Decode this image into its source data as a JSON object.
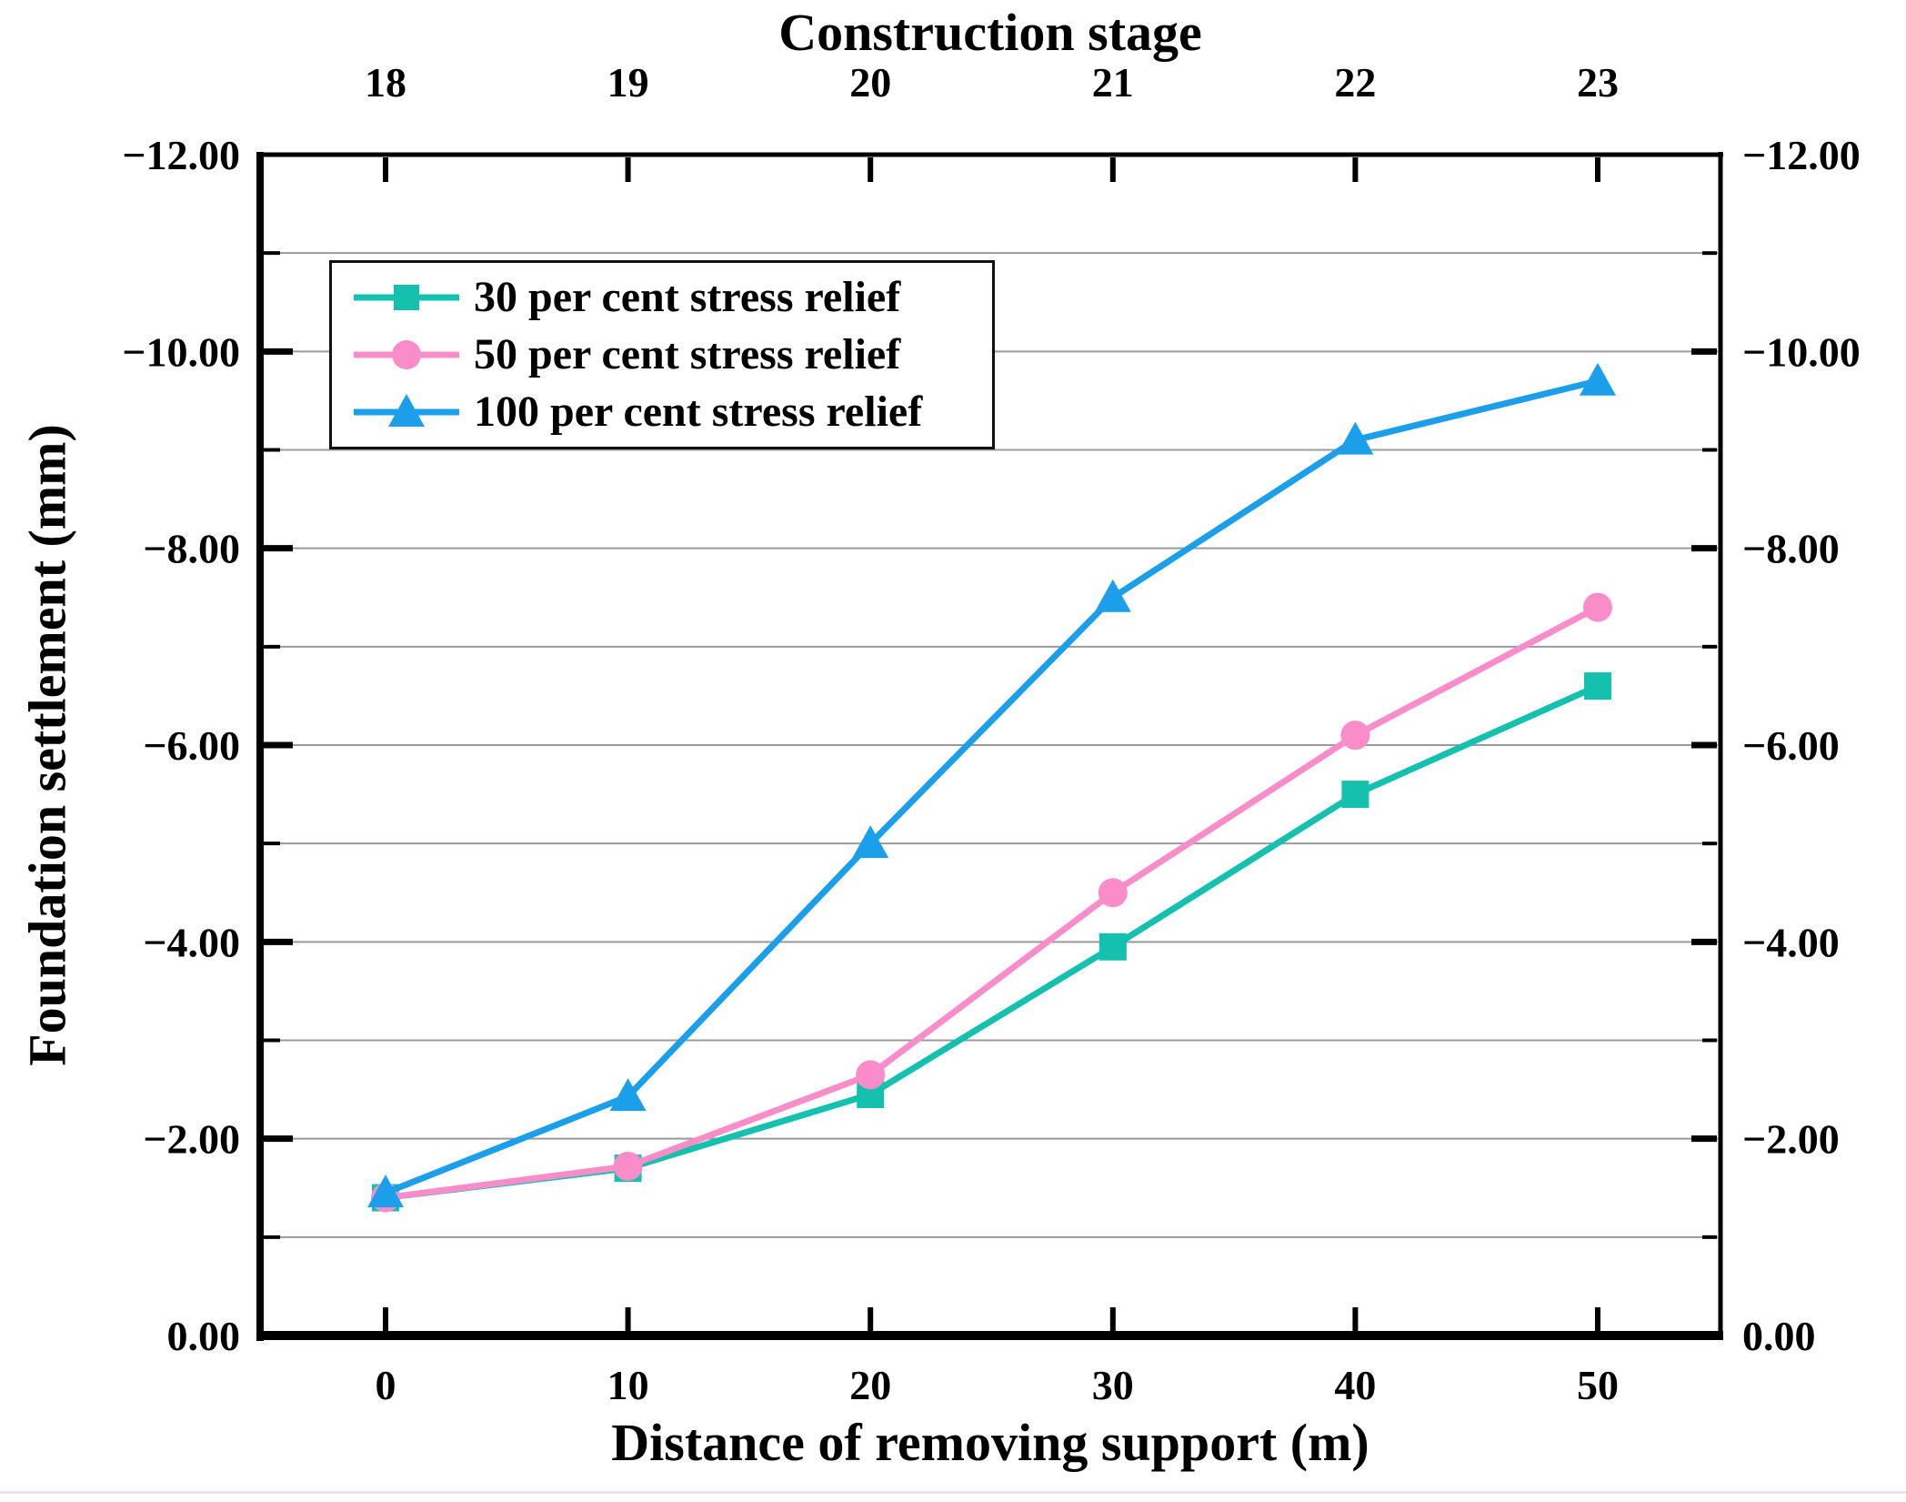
{
  "figure": {
    "background": "#ffffff",
    "axis_color": "#000000",
    "grid_color": "#9a9a9a"
  },
  "chart_data": {
    "type": "line",
    "title": "Construction stage",
    "xlabel": "Distance of removing support (m)",
    "ylabel": "Foundation settlement (mm)",
    "x": [
      0,
      10,
      20,
      30,
      40,
      50
    ],
    "x_tick_labels": [
      "0",
      "10",
      "20",
      "30",
      "40",
      "50"
    ],
    "top_axis_tick_labels": [
      "18",
      "19",
      "20",
      "21",
      "22",
      "23"
    ],
    "y_tick_values": [
      0,
      -2,
      -4,
      -6,
      -8,
      -10,
      -12
    ],
    "y_tick_labels": [
      "0.00",
      "−2.00",
      "−4.00",
      "−6.00",
      "−8.00",
      "−10.00",
      "−12.00"
    ],
    "y_minor_values": [
      -1,
      -3,
      -5,
      -7,
      -9,
      -11
    ],
    "ylim": [
      0,
      -12
    ],
    "xlim": [
      -5.2,
      55.1
    ],
    "grid": "horizontal, every 1.00, gray",
    "legend_position": "upper-left-inside",
    "series": [
      {
        "name": "30 per cent stress relief",
        "color": "#14C1AF",
        "marker": "square",
        "values": [
          -1.4,
          -1.7,
          -2.45,
          -3.95,
          -5.5,
          -6.6
        ]
      },
      {
        "name": "50 per cent stress relief",
        "color": "#F98DC9",
        "marker": "circle",
        "values": [
          -1.4,
          -1.72,
          -2.65,
          -4.5,
          -6.1,
          -7.4
        ]
      },
      {
        "name": "100 per cent stress relief",
        "color": "#1B9FEB",
        "marker": "triangle",
        "values": [
          -1.45,
          -2.43,
          -5.0,
          -7.5,
          -9.1,
          -9.7
        ]
      }
    ]
  }
}
